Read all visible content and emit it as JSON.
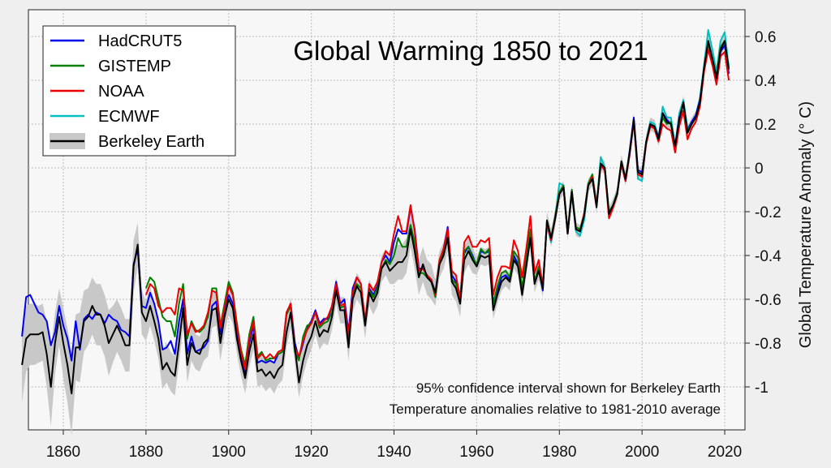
{
  "chart_data": {
    "type": "line",
    "title": "Global Warming 1850 to 2021",
    "xlabel": "",
    "ylabel": "Global Temperature Anomaly (° C)",
    "xlim": [
      1850,
      2022
    ],
    "ylim": [
      -1.2,
      0.72
    ],
    "x_ticks": [
      "1860",
      "1880",
      "1900",
      "1920",
      "1940",
      "1960",
      "1980",
      "2000",
      "2020"
    ],
    "y_ticks": [
      "0.6",
      "0.4",
      "0.2",
      "0",
      "-0.2",
      "-0.4",
      "-0.6",
      "-0.8",
      "-1"
    ],
    "grid": true,
    "legend_position": "top-left",
    "annotations": [
      "95% confidence interval shown for Berkeley Earth",
      "Temperature anomalies relative to 1981-2010 average"
    ],
    "series": [
      {
        "name": "HadCRUT5",
        "color": "#0000ee",
        "start_year": 1850,
        "values": [
          -0.77,
          -0.59,
          -0.58,
          -0.62,
          -0.66,
          -0.67,
          -0.7,
          -0.81,
          -0.75,
          -0.63,
          -0.72,
          -0.78,
          -0.88,
          -0.7,
          -0.83,
          -0.69,
          -0.67,
          -0.69,
          -0.66,
          -0.67,
          -0.71,
          -0.67,
          -0.69,
          -0.7,
          -0.74,
          -0.75,
          -0.77,
          -0.44,
          -0.37,
          -0.63,
          -0.64,
          -0.57,
          -0.62,
          -0.7,
          -0.83,
          -0.82,
          -0.79,
          -0.85,
          -0.7,
          -0.6,
          -0.85,
          -0.77,
          -0.84,
          -0.83,
          -0.82,
          -0.79,
          -0.63,
          -0.61,
          -0.76,
          -0.65,
          -0.58,
          -0.62,
          -0.76,
          -0.87,
          -0.94,
          -0.8,
          -0.72,
          -0.89,
          -0.88,
          -0.89,
          -0.88,
          -0.89,
          -0.85,
          -0.84,
          -0.66,
          -0.62,
          -0.8,
          -0.87,
          -0.8,
          -0.73,
          -0.7,
          -0.65,
          -0.71,
          -0.69,
          -0.69,
          -0.63,
          -0.52,
          -0.62,
          -0.6,
          -0.75,
          -0.55,
          -0.5,
          -0.53,
          -0.72,
          -0.55,
          -0.58,
          -0.54,
          -0.43,
          -0.4,
          -0.43,
          -0.34,
          -0.28,
          -0.3,
          -0.3,
          -0.18,
          -0.28,
          -0.46,
          -0.46,
          -0.49,
          -0.51,
          -0.57,
          -0.43,
          -0.37,
          -0.27,
          -0.49,
          -0.52,
          -0.6,
          -0.39,
          -0.36,
          -0.4,
          -0.45,
          -0.38,
          -0.39,
          -0.38,
          -0.62,
          -0.56,
          -0.5,
          -0.49,
          -0.51,
          -0.4,
          -0.44,
          -0.56,
          -0.43,
          -0.31,
          -0.52,
          -0.46,
          -0.56,
          -0.25,
          -0.33,
          -0.22,
          -0.12,
          -0.08,
          -0.3,
          -0.1,
          -0.28,
          -0.29,
          -0.21,
          -0.07,
          -0.05,
          -0.17,
          0.01,
          -0.01,
          -0.21,
          -0.17,
          -0.12,
          0.02,
          -0.06,
          0.08,
          0.23,
          -0.01,
          -0.02,
          0.12,
          0.19,
          0.19,
          0.14,
          0.25,
          0.22,
          0.2,
          0.1,
          0.23,
          0.29,
          0.17,
          0.21,
          0.24,
          0.31,
          0.45,
          0.57,
          0.49,
          0.4,
          0.53,
          0.56,
          0.43
        ]
      },
      {
        "name": "GISTEMP",
        "color": "#008000",
        "start_year": 1880,
        "values": [
          -0.55,
          -0.5,
          -0.52,
          -0.6,
          -0.68,
          -0.7,
          -0.7,
          -0.77,
          -0.62,
          -0.53,
          -0.78,
          -0.7,
          -0.74,
          -0.75,
          -0.73,
          -0.68,
          -0.55,
          -0.55,
          -0.72,
          -0.62,
          -0.52,
          -0.57,
          -0.71,
          -0.83,
          -0.9,
          -0.76,
          -0.68,
          -0.86,
          -0.84,
          -0.88,
          -0.87,
          -0.87,
          -0.85,
          -0.84,
          -0.67,
          -0.63,
          -0.84,
          -0.88,
          -0.77,
          -0.72,
          -0.71,
          -0.66,
          -0.73,
          -0.71,
          -0.7,
          -0.66,
          -0.55,
          -0.64,
          -0.63,
          -0.78,
          -0.59,
          -0.53,
          -0.55,
          -0.71,
          -0.56,
          -0.59,
          -0.55,
          -0.46,
          -0.42,
          -0.44,
          -0.4,
          -0.32,
          -0.36,
          -0.36,
          -0.26,
          -0.34,
          -0.48,
          -0.48,
          -0.5,
          -0.52,
          -0.59,
          -0.43,
          -0.39,
          -0.3,
          -0.51,
          -0.53,
          -0.62,
          -0.38,
          -0.36,
          -0.41,
          -0.44,
          -0.37,
          -0.39,
          -0.37,
          -0.62,
          -0.54,
          -0.48,
          -0.47,
          -0.5,
          -0.38,
          -0.41,
          -0.55,
          -0.4,
          -0.28,
          -0.52,
          -0.45,
          -0.55,
          -0.24,
          -0.32,
          -0.22,
          -0.11,
          -0.08,
          -0.29,
          -0.1,
          -0.27,
          -0.28,
          -0.21,
          -0.07,
          -0.03,
          -0.17,
          0.02,
          0.0,
          -0.2,
          -0.17,
          -0.11,
          0.03,
          -0.05,
          0.07,
          0.21,
          -0.02,
          -0.03,
          0.12,
          0.2,
          0.19,
          0.13,
          0.23,
          0.2,
          0.21,
          0.09,
          0.22,
          0.29,
          0.17,
          0.2,
          0.23,
          0.3,
          0.45,
          0.57,
          0.5,
          0.42,
          0.55,
          0.58,
          0.45
        ]
      },
      {
        "name": "NOAA",
        "color": "#ee0000",
        "start_year": 1880,
        "values": [
          -0.58,
          -0.53,
          -0.55,
          -0.63,
          -0.66,
          -0.64,
          -0.64,
          -0.67,
          -0.55,
          -0.56,
          -0.76,
          -0.71,
          -0.75,
          -0.74,
          -0.72,
          -0.66,
          -0.56,
          -0.57,
          -0.73,
          -0.64,
          -0.54,
          -0.58,
          -0.72,
          -0.84,
          -0.92,
          -0.78,
          -0.7,
          -0.87,
          -0.85,
          -0.87,
          -0.85,
          -0.87,
          -0.84,
          -0.83,
          -0.66,
          -0.62,
          -0.82,
          -0.86,
          -0.79,
          -0.74,
          -0.71,
          -0.66,
          -0.72,
          -0.7,
          -0.68,
          -0.63,
          -0.53,
          -0.63,
          -0.62,
          -0.77,
          -0.57,
          -0.5,
          -0.53,
          -0.7,
          -0.53,
          -0.56,
          -0.52,
          -0.43,
          -0.38,
          -0.4,
          -0.3,
          -0.22,
          -0.29,
          -0.29,
          -0.17,
          -0.29,
          -0.47,
          -0.46,
          -0.49,
          -0.51,
          -0.58,
          -0.42,
          -0.37,
          -0.28,
          -0.47,
          -0.49,
          -0.6,
          -0.34,
          -0.31,
          -0.36,
          -0.36,
          -0.33,
          -0.34,
          -0.32,
          -0.58,
          -0.5,
          -0.45,
          -0.45,
          -0.46,
          -0.33,
          -0.38,
          -0.5,
          -0.37,
          -0.22,
          -0.48,
          -0.42,
          -0.54,
          -0.25,
          -0.33,
          -0.23,
          -0.12,
          -0.09,
          -0.3,
          -0.11,
          -0.28,
          -0.29,
          -0.21,
          -0.08,
          -0.04,
          -0.17,
          0.01,
          -0.01,
          -0.23,
          -0.18,
          -0.12,
          0.02,
          -0.06,
          0.06,
          0.21,
          -0.03,
          -0.04,
          0.11,
          0.19,
          0.18,
          0.12,
          0.2,
          0.18,
          0.17,
          0.07,
          0.19,
          0.26,
          0.13,
          0.18,
          0.21,
          0.28,
          0.44,
          0.54,
          0.47,
          0.38,
          0.51,
          0.53,
          0.4
        ]
      },
      {
        "name": "ECMWF",
        "color": "#00c0c0",
        "start_year": 1977,
        "values": [
          -0.26,
          -0.34,
          -0.22,
          -0.07,
          -0.08,
          -0.3,
          -0.12,
          -0.29,
          -0.31,
          -0.24,
          -0.08,
          -0.03,
          -0.17,
          0.05,
          0.0,
          -0.21,
          -0.17,
          -0.11,
          0.02,
          -0.06,
          0.06,
          0.22,
          -0.05,
          -0.06,
          0.12,
          0.21,
          0.2,
          0.14,
          0.28,
          0.23,
          0.23,
          0.1,
          0.25,
          0.31,
          0.18,
          0.21,
          0.24,
          0.32,
          0.47,
          0.63,
          0.54,
          0.44,
          0.58,
          0.62,
          0.46
        ]
      },
      {
        "name": "Berkeley Earth",
        "color": "#000000",
        "band_color": "#c8c8c8",
        "start_year": 1850,
        "values": [
          -0.9,
          -0.78,
          -0.76,
          -0.76,
          -0.76,
          -0.75,
          -0.85,
          -1.0,
          -0.8,
          -0.68,
          -0.8,
          -0.9,
          -1.03,
          -0.82,
          -0.82,
          -0.7,
          -0.68,
          -0.63,
          -0.67,
          -0.67,
          -0.72,
          -0.8,
          -0.76,
          -0.72,
          -0.76,
          -0.81,
          -0.81,
          -0.45,
          -0.35,
          -0.66,
          -0.7,
          -0.63,
          -0.7,
          -0.78,
          -0.92,
          -0.89,
          -0.93,
          -0.95,
          -0.8,
          -0.64,
          -0.9,
          -0.8,
          -0.84,
          -0.85,
          -0.8,
          -0.78,
          -0.65,
          -0.64,
          -0.8,
          -0.68,
          -0.6,
          -0.64,
          -0.78,
          -0.88,
          -0.96,
          -0.84,
          -0.76,
          -0.93,
          -0.92,
          -0.95,
          -0.93,
          -0.96,
          -0.92,
          -0.9,
          -0.75,
          -0.66,
          -0.82,
          -0.98,
          -0.88,
          -0.81,
          -0.77,
          -0.7,
          -0.77,
          -0.74,
          -0.75,
          -0.68,
          -0.56,
          -0.65,
          -0.65,
          -0.82,
          -0.6,
          -0.54,
          -0.57,
          -0.72,
          -0.57,
          -0.61,
          -0.57,
          -0.46,
          -0.43,
          -0.47,
          -0.45,
          -0.43,
          -0.43,
          -0.4,
          -0.28,
          -0.38,
          -0.5,
          -0.44,
          -0.5,
          -0.52,
          -0.57,
          -0.44,
          -0.4,
          -0.32,
          -0.52,
          -0.55,
          -0.62,
          -0.42,
          -0.38,
          -0.42,
          -0.45,
          -0.4,
          -0.41,
          -0.4,
          -0.65,
          -0.58,
          -0.52,
          -0.5,
          -0.52,
          -0.42,
          -0.45,
          -0.58,
          -0.45,
          -0.32,
          -0.53,
          -0.47,
          -0.55,
          -0.24,
          -0.32,
          -0.23,
          -0.12,
          -0.09,
          -0.3,
          -0.11,
          -0.28,
          -0.29,
          -0.22,
          -0.08,
          -0.05,
          -0.18,
          0.02,
          0.0,
          -0.21,
          -0.17,
          -0.12,
          0.03,
          -0.05,
          0.07,
          0.22,
          -0.02,
          -0.03,
          0.12,
          0.2,
          0.19,
          0.13,
          0.25,
          0.21,
          0.2,
          0.1,
          0.22,
          0.3,
          0.16,
          0.2,
          0.23,
          0.3,
          0.46,
          0.58,
          0.5,
          0.41,
          0.54,
          0.58,
          0.45
        ],
        "ci_halfwidth": [
          0.17,
          0.15,
          0.14,
          0.14,
          0.13,
          0.13,
          0.15,
          0.18,
          0.14,
          0.13,
          0.16,
          0.17,
          0.19,
          0.15,
          0.16,
          0.14,
          0.13,
          0.13,
          0.14,
          0.14,
          0.14,
          0.15,
          0.13,
          0.12,
          0.12,
          0.12,
          0.12,
          0.12,
          0.1,
          0.1,
          0.09,
          0.09,
          0.09,
          0.09,
          0.09,
          0.09,
          0.09,
          0.09,
          0.09,
          0.09,
          0.08,
          0.08,
          0.08,
          0.08,
          0.08,
          0.08,
          0.08,
          0.08,
          0.08,
          0.08,
          0.07,
          0.07,
          0.07,
          0.07,
          0.07,
          0.07,
          0.07,
          0.07,
          0.07,
          0.07,
          0.07,
          0.07,
          0.07,
          0.07,
          0.07,
          0.07,
          0.07,
          0.07,
          0.07,
          0.07,
          0.06,
          0.06,
          0.06,
          0.06,
          0.06,
          0.06,
          0.06,
          0.06,
          0.06,
          0.06,
          0.06,
          0.06,
          0.06,
          0.06,
          0.06,
          0.06,
          0.06,
          0.06,
          0.06,
          0.06,
          0.08,
          0.08,
          0.08,
          0.08,
          0.08,
          0.08,
          0.08,
          0.08,
          0.08,
          0.08,
          0.06,
          0.06,
          0.06,
          0.06,
          0.06,
          0.06,
          0.06,
          0.06,
          0.06,
          0.06,
          0.04,
          0.04,
          0.04,
          0.04,
          0.04,
          0.04,
          0.04,
          0.04,
          0.04,
          0.04,
          0.04,
          0.04,
          0.04,
          0.04,
          0.04,
          0.04,
          0.04,
          0.04,
          0.04,
          0.04,
          0.03,
          0.03,
          0.03,
          0.03,
          0.03,
          0.03,
          0.03,
          0.03,
          0.03,
          0.03,
          0.03,
          0.03,
          0.03,
          0.03,
          0.03,
          0.03,
          0.03,
          0.03,
          0.03,
          0.03,
          0.03,
          0.03,
          0.03,
          0.03,
          0.03,
          0.03,
          0.03,
          0.03,
          0.03,
          0.03,
          0.03,
          0.03,
          0.03,
          0.03,
          0.03,
          0.03,
          0.03,
          0.03,
          0.03,
          0.03,
          0.03,
          0.03
        ]
      }
    ]
  }
}
